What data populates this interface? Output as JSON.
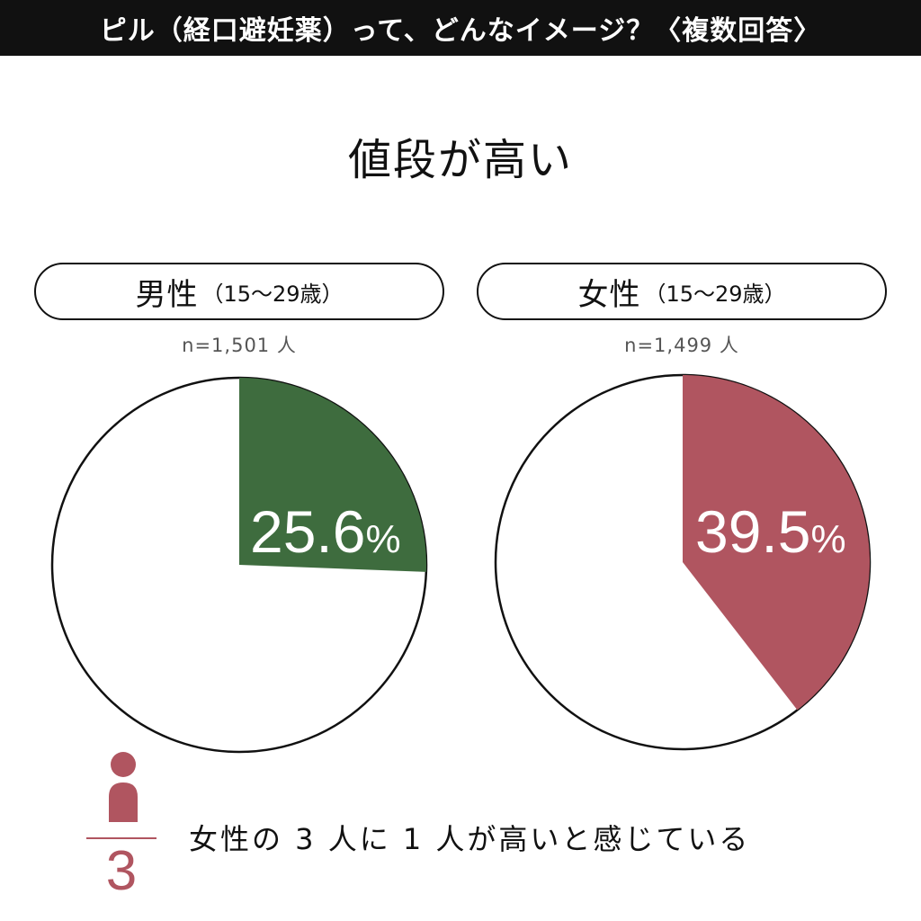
{
  "header": {
    "title": "ピル（経口避妊薬）って、どんなイメージ？〈複数回答〉"
  },
  "topic": "値段が高い",
  "groups": {
    "male": {
      "label": "男性",
      "age": "（15〜29歳）",
      "n": "n=1,501 人",
      "pct_label": "25.6",
      "pct_sign": "%"
    },
    "female": {
      "label": "女性",
      "age": "（15〜29歳）",
      "n": "n=1,499 人",
      "pct_label": "39.5",
      "pct_sign": "%"
    }
  },
  "colors": {
    "male": "#3e6c3e",
    "female": "#b05560",
    "outline": "#111111"
  },
  "chart_data": [
    {
      "type": "pie",
      "title": "男性（15〜29歳）",
      "categories": [
        "値段が高い",
        ""
      ],
      "values": [
        25.6,
        74.4
      ]
    },
    {
      "type": "pie",
      "title": "女性（15〜29歳）",
      "categories": [
        "値段が高い",
        ""
      ],
      "values": [
        39.5,
        60.5
      ]
    }
  ],
  "footer": {
    "denominator": "3",
    "summary": "女性の 3 人に 1 人が高いと感じている",
    "icon": "person-icon"
  }
}
